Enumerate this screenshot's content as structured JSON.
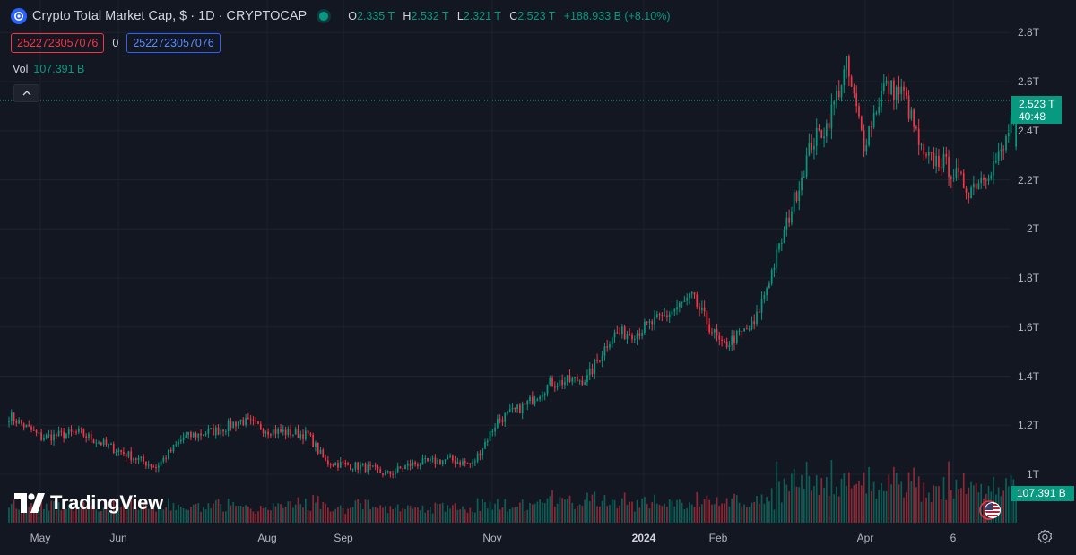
{
  "header": {
    "title": "Crypto Total Market Cap, $ · 1D · CRYPTOCAP",
    "ohlc": [
      {
        "key": "O",
        "value": "2.335 T"
      },
      {
        "key": "H",
        "value": "2.532 T"
      },
      {
        "key": "L",
        "value": "2.321 T"
      },
      {
        "key": "C",
        "value": "2.523 T"
      }
    ],
    "change": "+188.933 B (+8.10%)"
  },
  "inputs": {
    "red_value": "2522723057076",
    "zero": "0",
    "blue_value": "2522723057076"
  },
  "volume": {
    "label": "Vol",
    "value": "107.391 B"
  },
  "branding": {
    "name": "TradingView"
  },
  "price_label": {
    "value": "2.523 T",
    "countdown": "40:48"
  },
  "volume_label": "107.391 B",
  "colors": {
    "up": "#089981",
    "down": "#f23645",
    "background": "#131722",
    "grid": "#1e222d"
  },
  "icons": {
    "collapse": "chevron-up-icon",
    "settings": "gear-icon",
    "currency": "us-flag-icon",
    "logo": "cryptocap-logo-icon"
  },
  "chart_data": {
    "type": "candlestick",
    "interval": "1D",
    "y_axis": {
      "ticks": [
        1.0,
        1.2,
        1.4,
        1.6,
        1.8,
        2.0,
        2.2,
        2.4,
        2.6,
        2.8
      ],
      "tick_labels": [
        "1T",
        "1.2T",
        "1.4T",
        "1.6T",
        "1.8T",
        "2T",
        "2.2T",
        "2.4T",
        "2.6T",
        "2.8T"
      ],
      "unit": "T",
      "range": [
        0.9,
        2.85
      ]
    },
    "x_axis": {
      "labels": [
        "May",
        "Jun",
        "Aug",
        "Sep",
        "Nov",
        "2024",
        "Feb",
        "Apr",
        "6"
      ],
      "bold": [
        "2024"
      ]
    },
    "last_price": 2.523,
    "last_volume": "107.391 B",
    "close_series": [
      {
        "date": "2023-04-12",
        "close": 1.24
      },
      {
        "date": "2023-04-25",
        "close": 1.15
      },
      {
        "date": "2023-05-10",
        "close": 1.17
      },
      {
        "date": "2023-05-25",
        "close": 1.1
      },
      {
        "date": "2023-06-10",
        "close": 1.03
      },
      {
        "date": "2023-06-21",
        "close": 1.15
      },
      {
        "date": "2023-07-05",
        "close": 1.18
      },
      {
        "date": "2023-07-14",
        "close": 1.22
      },
      {
        "date": "2023-07-25",
        "close": 1.18
      },
      {
        "date": "2023-08-10",
        "close": 1.16
      },
      {
        "date": "2023-08-17",
        "close": 1.05
      },
      {
        "date": "2023-09-01",
        "close": 1.03
      },
      {
        "date": "2023-09-11",
        "close": 1.0
      },
      {
        "date": "2023-09-20",
        "close": 1.04
      },
      {
        "date": "2023-10-05",
        "close": 1.06
      },
      {
        "date": "2023-10-15",
        "close": 1.04
      },
      {
        "date": "2023-10-25",
        "close": 1.22
      },
      {
        "date": "2023-11-05",
        "close": 1.28
      },
      {
        "date": "2023-11-15",
        "close": 1.37
      },
      {
        "date": "2023-11-30",
        "close": 1.39
      },
      {
        "date": "2023-12-10",
        "close": 1.57
      },
      {
        "date": "2023-12-20",
        "close": 1.58
      },
      {
        "date": "2024-01-01",
        "close": 1.65
      },
      {
        "date": "2024-01-11",
        "close": 1.72
      },
      {
        "date": "2024-01-23",
        "close": 1.52
      },
      {
        "date": "2024-02-05",
        "close": 1.61
      },
      {
        "date": "2024-02-15",
        "close": 1.92
      },
      {
        "date": "2024-02-28",
        "close": 2.35
      },
      {
        "date": "2024-03-05",
        "close": 2.42
      },
      {
        "date": "2024-03-13",
        "close": 2.66
      },
      {
        "date": "2024-03-20",
        "close": 2.35
      },
      {
        "date": "2024-03-28",
        "close": 2.58
      },
      {
        "date": "2024-04-05",
        "close": 2.55
      },
      {
        "date": "2024-04-13",
        "close": 2.28
      },
      {
        "date": "2024-04-20",
        "close": 2.28
      },
      {
        "date": "2024-05-01",
        "close": 2.16
      },
      {
        "date": "2024-05-10",
        "close": 2.25
      },
      {
        "date": "2024-05-15",
        "close": 2.32
      },
      {
        "date": "2024-05-20",
        "close": 2.523
      }
    ]
  }
}
